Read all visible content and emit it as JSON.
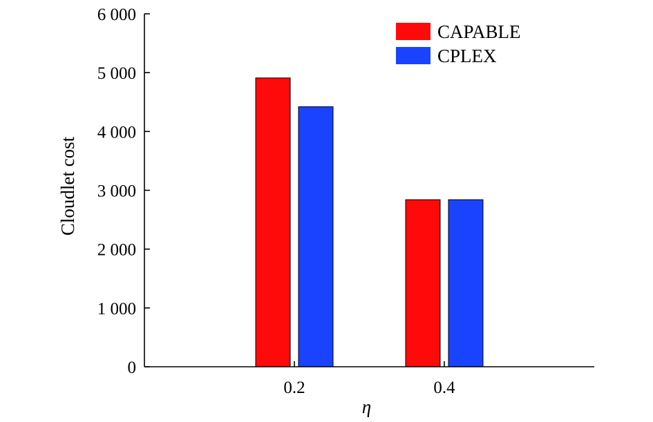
{
  "chart_data": {
    "type": "bar",
    "title": "",
    "xlabel": "η",
    "ylabel": "Cloudlet cost",
    "categories": [
      "0.2",
      "0.4"
    ],
    "series": [
      {
        "name": "CAPABLE",
        "color": "#ff0a0a",
        "values": [
          4910,
          2840
        ]
      },
      {
        "name": "CPLEX",
        "color": "#1a43ff",
        "values": [
          4420,
          2840
        ]
      }
    ],
    "ylim": [
      0,
      6000
    ],
    "xlim": [
      0,
      0.6
    ],
    "yticks": [
      0,
      1000,
      2000,
      3000,
      4000,
      5000,
      6000
    ],
    "ytick_labels": [
      "0",
      "1 000",
      "2 000",
      "3 000",
      "4 000",
      "5 000",
      "6 000"
    ],
    "xtick_labels": [
      "0.2",
      "0.4"
    ],
    "grid": false,
    "legend_position": "top-right"
  }
}
